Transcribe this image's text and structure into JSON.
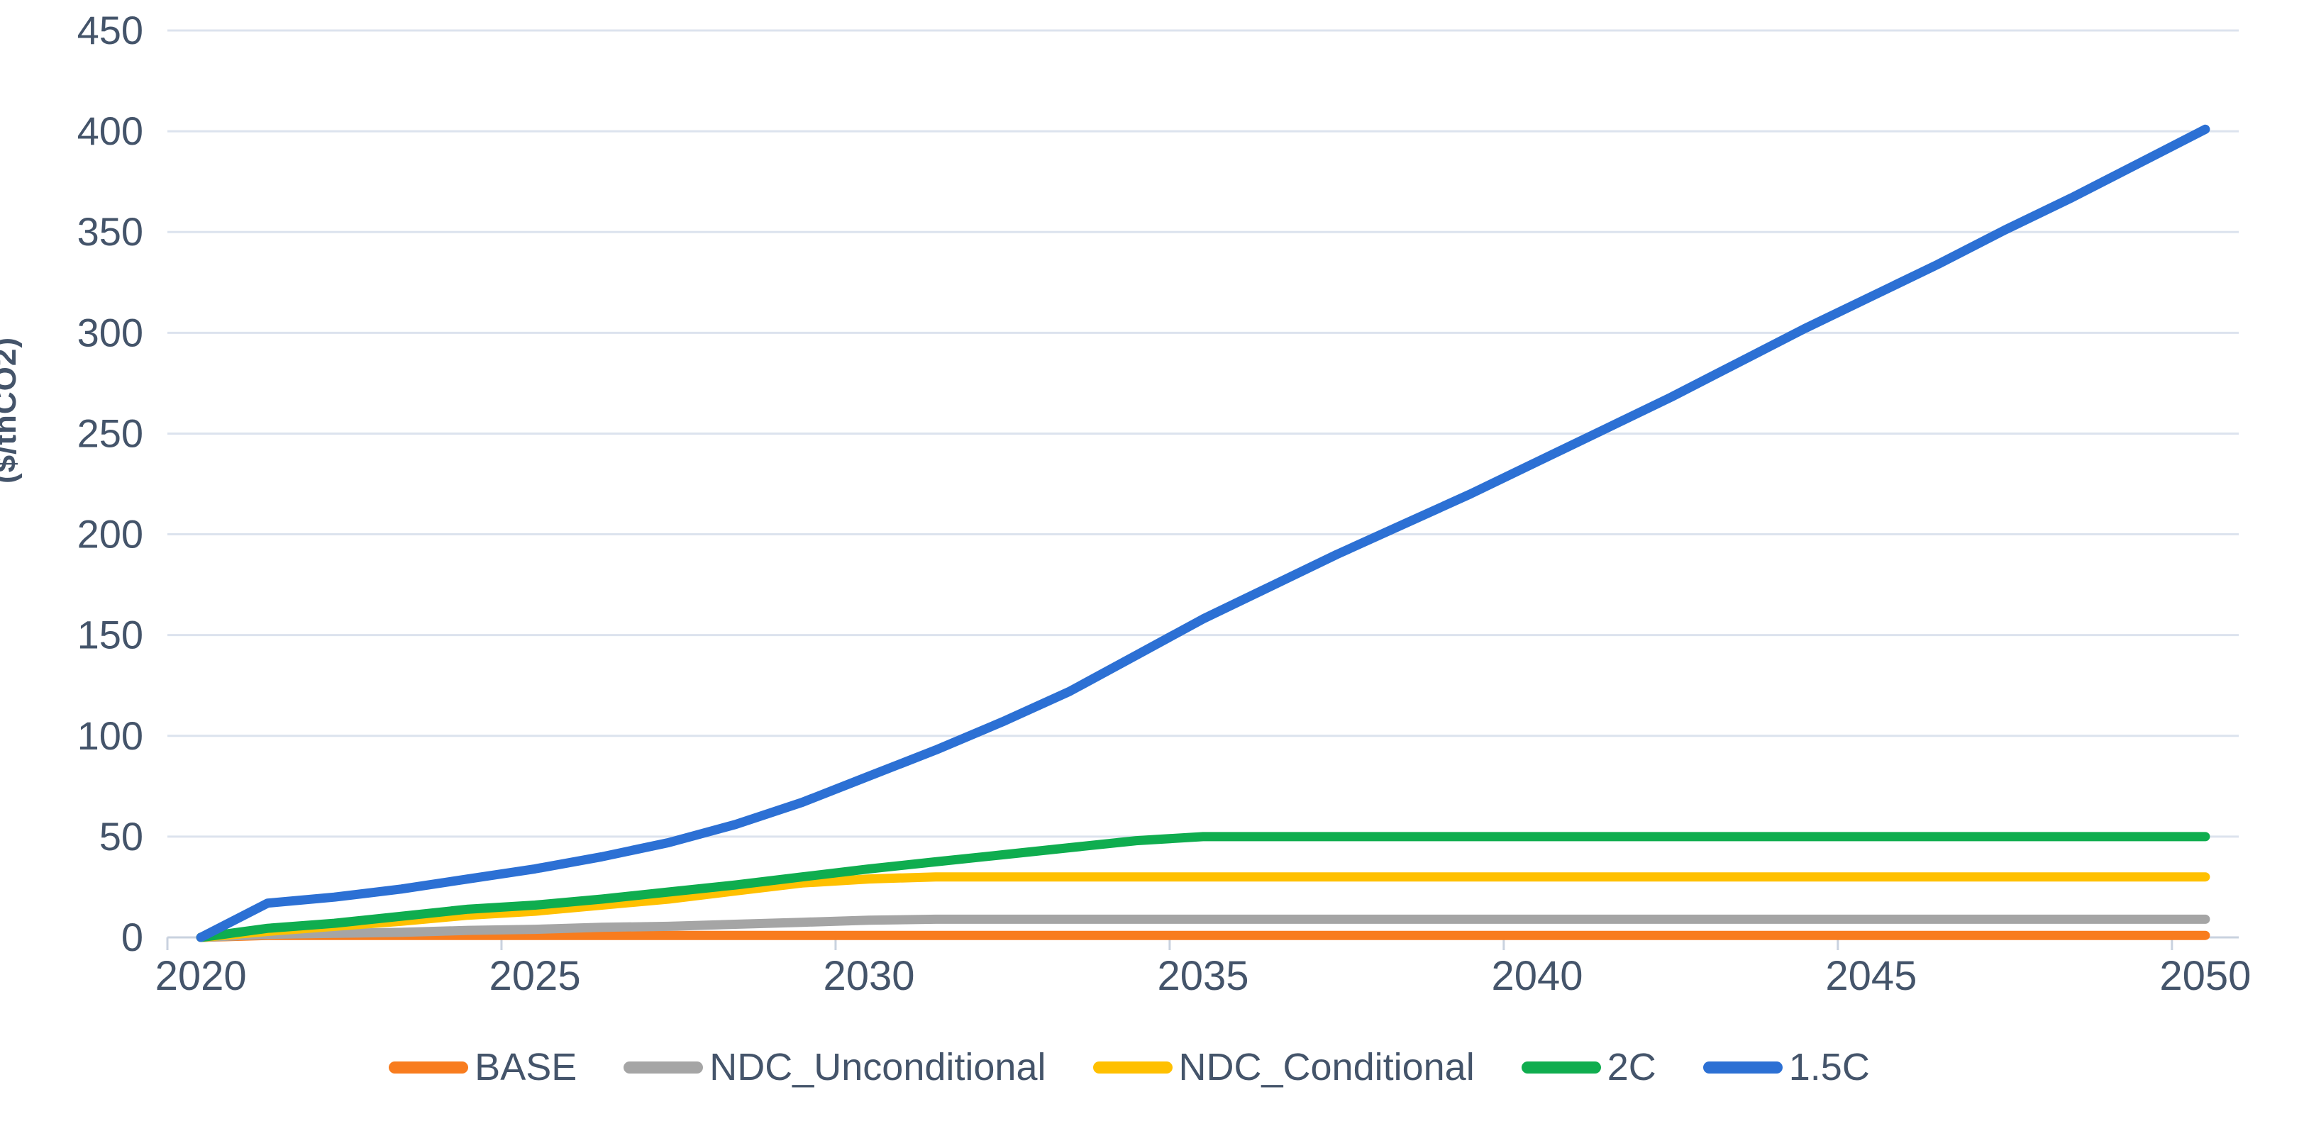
{
  "chart_data": {
    "type": "line",
    "title": "",
    "xlabel": "",
    "ylabel": "($/tnCO2)",
    "ylim": [
      0,
      450
    ],
    "y_tick_step": 50,
    "y_tick_labels": [
      "0",
      "50",
      "100",
      "150",
      "200",
      "250",
      "300",
      "350",
      "400",
      "450"
    ],
    "x": [
      2020,
      2021,
      2022,
      2023,
      2024,
      2025,
      2026,
      2027,
      2028,
      2029,
      2030,
      2031,
      2032,
      2033,
      2034,
      2035,
      2036,
      2037,
      2038,
      2039,
      2040,
      2041,
      2042,
      2043,
      2044,
      2045,
      2046,
      2047,
      2048,
      2049,
      2050
    ],
    "x_tick_labels": [
      "2020",
      "2025",
      "2030",
      "2035",
      "2040",
      "2045",
      "2050"
    ],
    "x_label_step": 5,
    "grid": true,
    "legend_position": "bottom",
    "series": [
      {
        "name": "BASE",
        "color": "#F87C1E",
        "values": [
          0,
          1,
          1,
          1,
          1,
          1,
          1,
          1,
          1,
          1,
          1,
          1,
          1,
          1,
          1,
          1,
          1,
          1,
          1,
          1,
          1,
          1,
          1,
          1,
          1,
          1,
          1,
          1,
          1,
          1,
          1
        ]
      },
      {
        "name": "NDC_Unconditional",
        "color": "#A5A5A5",
        "values": [
          0,
          1.5,
          2,
          2.5,
          3.5,
          4,
          5,
          5.5,
          6.5,
          7.5,
          8.5,
          9,
          9,
          9,
          9,
          9,
          9,
          9,
          9,
          9,
          9,
          9,
          9,
          9,
          9,
          9,
          9,
          9,
          9,
          9,
          9
        ]
      },
      {
        "name": "NDC_Conditional",
        "color": "#FFC000",
        "values": [
          0,
          3,
          5.5,
          8,
          11,
          13,
          16,
          19,
          23,
          27,
          29,
          30,
          30,
          30,
          30,
          30,
          30,
          30,
          30,
          30,
          30,
          30,
          30,
          30,
          30,
          30,
          30,
          30,
          30,
          30,
          30
        ]
      },
      {
        "name": "2C",
        "color": "#0FAD4F",
        "values": [
          0,
          4.5,
          7,
          10.5,
          14,
          16,
          19,
          22.5,
          26,
          30,
          34,
          37.5,
          41,
          44.5,
          48,
          50,
          50,
          50,
          50,
          50,
          50,
          50,
          50,
          50,
          50,
          50,
          50,
          50,
          50,
          50,
          50
        ]
      },
      {
        "name": "1.5C",
        "color": "#2C70D4",
        "values": [
          0,
          17,
          20,
          24,
          29,
          34,
          40,
          47,
          56,
          67,
          80,
          93,
          107,
          122,
          140,
          158,
          174,
          190,
          205,
          220,
          236,
          252,
          268,
          285,
          302,
          318,
          334,
          351,
          367,
          384,
          401
        ]
      }
    ]
  },
  "style": {
    "text_color": "#44546A",
    "grid_color": "#DCE3EE",
    "axis_color": "#C9D2DF",
    "background": "#FFFFFF"
  }
}
